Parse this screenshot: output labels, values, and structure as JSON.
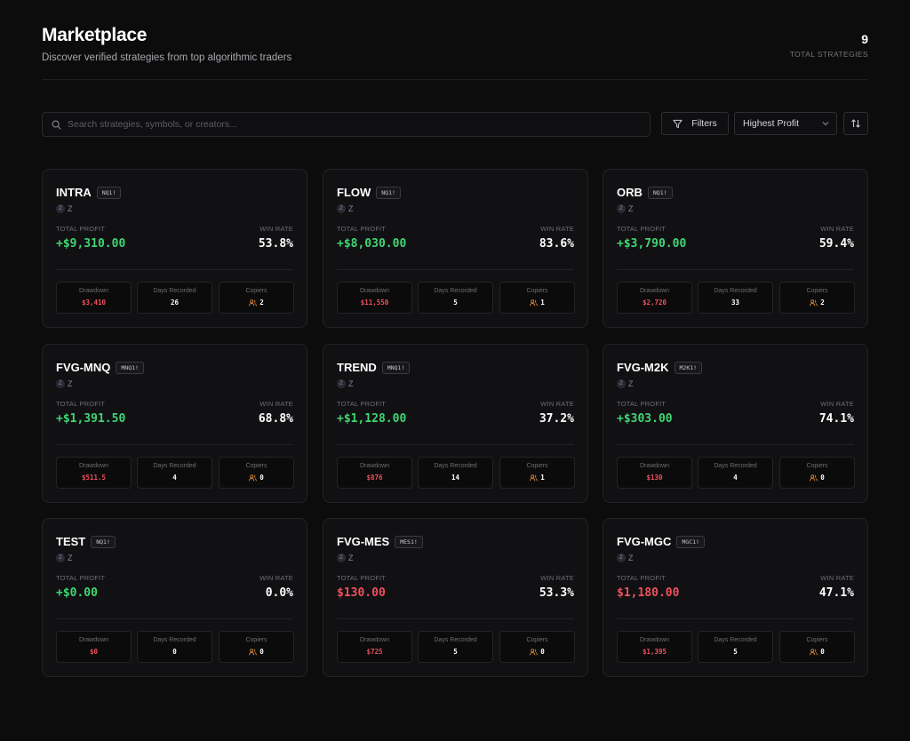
{
  "header": {
    "title": "Marketplace",
    "subtitle": "Discover verified strategies from top algorithmic traders",
    "total_count": "9",
    "total_label": "TOTAL STRATEGIES"
  },
  "toolbar": {
    "search_placeholder": "Search strategies, symbols, or creators...",
    "filters_label": "Filters",
    "sort_label": "Highest Profit",
    "icons": {
      "search": "search-icon",
      "filters": "filter-icon",
      "sort": "chevron-down-icon",
      "order": "sort-order-icon"
    }
  },
  "labels": {
    "total_profit": "TOTAL PROFIT",
    "win_rate": "WIN RATE",
    "drawdown": "Drawdown",
    "days": "Days Recorded",
    "copiers": "Copiers"
  },
  "colors": {
    "positive": "#3fd673",
    "negative": "#f0505c",
    "copier_icon": "#e8913a"
  },
  "cards": [
    {
      "name": "INTRA",
      "symbol": "NQ1!",
      "creator_initial": "Z",
      "creator": "Z",
      "profit": "+$9,310.00",
      "profit_sign": "pos",
      "win_rate": "53.8%",
      "drawdown": "$3,410",
      "days": "26",
      "copiers": "2"
    },
    {
      "name": "FLOW",
      "symbol": "NQ1!",
      "creator_initial": "Z",
      "creator": "Z",
      "profit": "+$8,030.00",
      "profit_sign": "pos",
      "win_rate": "83.6%",
      "drawdown": "$11,550",
      "days": "5",
      "copiers": "1"
    },
    {
      "name": "ORB",
      "symbol": "NQ1!",
      "creator_initial": "Z",
      "creator": "Z",
      "profit": "+$3,790.00",
      "profit_sign": "pos",
      "win_rate": "59.4%",
      "drawdown": "$2,720",
      "days": "33",
      "copiers": "2"
    },
    {
      "name": "FVG-MNQ",
      "symbol": "MNQ1!",
      "creator_initial": "Z",
      "creator": "Z",
      "profit": "+$1,391.50",
      "profit_sign": "pos",
      "win_rate": "68.8%",
      "drawdown": "$511.5",
      "days": "4",
      "copiers": "0"
    },
    {
      "name": "TREND",
      "symbol": "MNQ1!",
      "creator_initial": "Z",
      "creator": "Z",
      "profit": "+$1,128.00",
      "profit_sign": "pos",
      "win_rate": "37.2%",
      "drawdown": "$876",
      "days": "14",
      "copiers": "1"
    },
    {
      "name": "FVG-M2K",
      "symbol": "M2K1!",
      "creator_initial": "Z",
      "creator": "Z",
      "profit": "+$303.00",
      "profit_sign": "pos",
      "win_rate": "74.1%",
      "drawdown": "$130",
      "days": "4",
      "copiers": "0"
    },
    {
      "name": "TEST",
      "symbol": "NQ1!",
      "creator_initial": "Z",
      "creator": "Z",
      "profit": "+$0.00",
      "profit_sign": "pos",
      "win_rate": "0.0%",
      "drawdown": "$0",
      "days": "0",
      "copiers": "0"
    },
    {
      "name": "FVG-MES",
      "symbol": "MES1!",
      "creator_initial": "Z",
      "creator": "Z",
      "profit": "$130.00",
      "profit_sign": "neg",
      "win_rate": "53.3%",
      "drawdown": "$725",
      "days": "5",
      "copiers": "0"
    },
    {
      "name": "FVG-MGC",
      "symbol": "MGC1!",
      "creator_initial": "Z",
      "creator": "Z",
      "profit": "$1,180.00",
      "profit_sign": "neg",
      "win_rate": "47.1%",
      "drawdown": "$1,395",
      "days": "5",
      "copiers": "0"
    }
  ]
}
